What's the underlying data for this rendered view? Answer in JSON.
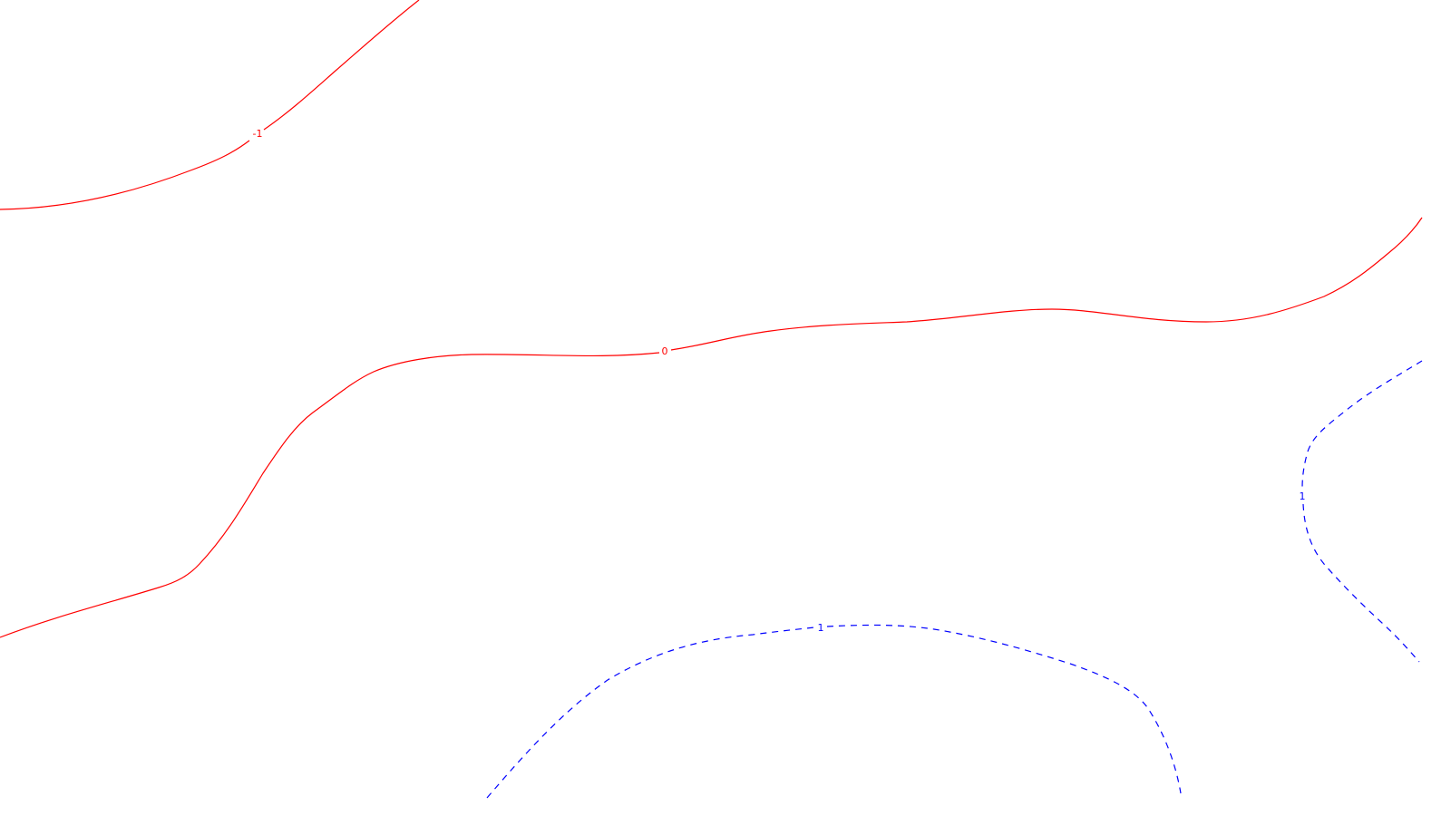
{
  "colors": {
    "background": "#ffffff",
    "negative_and_zero": "#ff0000",
    "positive": "#0000ff"
  },
  "contours": [
    {
      "level": "-1",
      "style": "solid",
      "color": "#ff0000"
    },
    {
      "level": "0",
      "style": "solid",
      "color": "#ff0000"
    },
    {
      "level": "1",
      "style": "dashed",
      "color": "#0000ff"
    },
    {
      "level": "1",
      "style": "dashed",
      "color": "#0000ff"
    }
  ]
}
